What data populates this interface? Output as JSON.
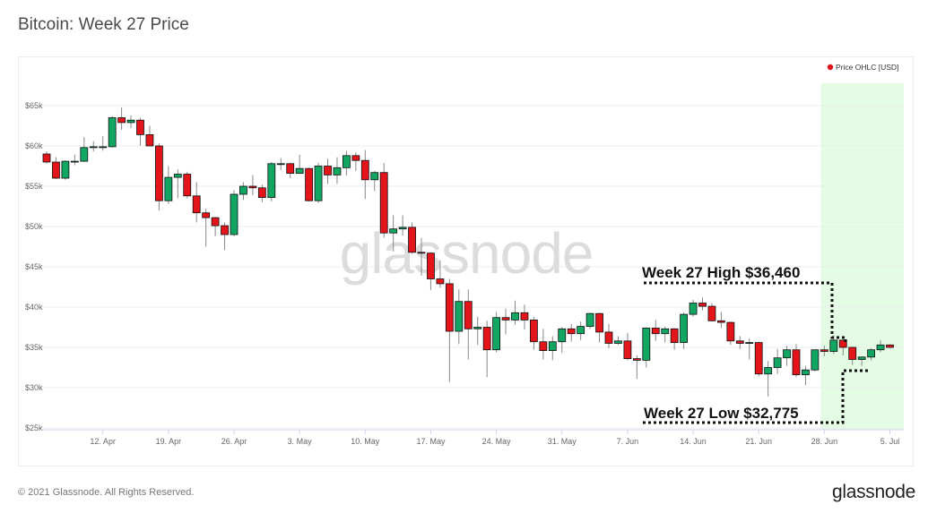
{
  "title": "Bitcoin: Week 27 Price",
  "footer": "© 2021 Glassnode. All Rights Reserved.",
  "logo": "glassnode",
  "watermark": "glassnode",
  "colors": {
    "up": "#12a663",
    "down": "#e3151b",
    "highlight": "#e4fbe4",
    "legend_dot": "#e3151b"
  },
  "chart_data": {
    "type": "candlestick",
    "legend": {
      "label": "Price OHLC [USD]",
      "placement": "top-right"
    },
    "ylim": [
      25000,
      67000
    ],
    "yticks": [
      25000,
      30000,
      35000,
      40000,
      45000,
      50000,
      55000,
      60000,
      65000
    ],
    "ytick_labels": [
      "$25k",
      "$30k",
      "$35k",
      "$40k",
      "$45k",
      "$50k",
      "$55k",
      "$60k",
      "$65k"
    ],
    "xtick_labels": [
      {
        "date": "2021-04-12",
        "label": "12. Apr"
      },
      {
        "date": "2021-04-19",
        "label": "19. Apr"
      },
      {
        "date": "2021-04-26",
        "label": "26. Apr"
      },
      {
        "date": "2021-05-03",
        "label": "3. May"
      },
      {
        "date": "2021-05-10",
        "label": "10. May"
      },
      {
        "date": "2021-05-17",
        "label": "17. May"
      },
      {
        "date": "2021-05-24",
        "label": "24. May"
      },
      {
        "date": "2021-05-31",
        "label": "31. May"
      },
      {
        "date": "2021-06-07",
        "label": "7. Jun"
      },
      {
        "date": "2021-06-14",
        "label": "14. Jun"
      },
      {
        "date": "2021-06-21",
        "label": "21. Jun"
      },
      {
        "date": "2021-06-28",
        "label": "28. Jun"
      },
      {
        "date": "2021-07-05",
        "label": "5. Jul"
      }
    ],
    "start_date": "2021-04-06",
    "ohlc": [
      [
        59000,
        59300,
        57800,
        58000
      ],
      [
        58000,
        58600,
        55900,
        56000
      ],
      [
        56000,
        58200,
        55800,
        58100
      ],
      [
        58100,
        58900,
        57600,
        58100
      ],
      [
        58100,
        61100,
        58000,
        59800
      ],
      [
        59800,
        60600,
        59300,
        59900
      ],
      [
        59900,
        61200,
        59400,
        59900
      ],
      [
        59900,
        63700,
        59800,
        63500
      ],
      [
        63500,
        64800,
        62000,
        62900
      ],
      [
        62900,
        63800,
        62200,
        63200
      ],
      [
        63200,
        63500,
        60000,
        61400
      ],
      [
        61400,
        62500,
        60000,
        60000
      ],
      [
        60000,
        60300,
        52000,
        53200
      ],
      [
        53200,
        57500,
        52800,
        56100
      ],
      [
        56100,
        57100,
        53500,
        56500
      ],
      [
        56500,
        56800,
        53500,
        53800
      ],
      [
        53800,
        55500,
        50500,
        51700
      ],
      [
        51700,
        52200,
        47500,
        51100
      ],
      [
        51100,
        51200,
        48800,
        50100
      ],
      [
        50100,
        50500,
        47100,
        49000
      ],
      [
        49000,
        54500,
        48800,
        54000
      ],
      [
        54000,
        55500,
        53300,
        55000
      ],
      [
        55000,
        56400,
        53900,
        54800
      ],
      [
        54800,
        55200,
        53000,
        53600
      ],
      [
        53600,
        58000,
        53100,
        57800
      ],
      [
        57800,
        58500,
        57000,
        57800
      ],
      [
        57800,
        57900,
        56000,
        56600
      ],
      [
        56600,
        58900,
        56500,
        57200
      ],
      [
        57200,
        57300,
        53100,
        53200
      ],
      [
        53200,
        57900,
        52900,
        57500
      ],
      [
        57500,
        58400,
        55300,
        56400
      ],
      [
        56400,
        58600,
        55300,
        57300
      ],
      [
        57300,
        59400,
        56300,
        58800
      ],
      [
        58800,
        59200,
        56900,
        58200
      ],
      [
        58200,
        59500,
        53400,
        55800
      ],
      [
        55800,
        56900,
        54400,
        56700
      ],
      [
        56700,
        57900,
        48600,
        49200
      ],
      [
        49200,
        51400,
        46900,
        49700
      ],
      [
        49700,
        51400,
        48900,
        49900
      ],
      [
        49900,
        50500,
        46600,
        46800
      ],
      [
        46800,
        48600,
        43900,
        46700
      ],
      [
        46700,
        46800,
        42100,
        43500
      ],
      [
        43500,
        45800,
        42400,
        42900
      ],
      [
        42900,
        43500,
        30700,
        37000
      ],
      [
        37000,
        42200,
        35400,
        40700
      ],
      [
        40700,
        42200,
        33500,
        37300
      ],
      [
        37300,
        38800,
        35300,
        37500
      ],
      [
        37500,
        38300,
        31300,
        34700
      ],
      [
        34700,
        39400,
        34400,
        38700
      ],
      [
        38700,
        39800,
        36600,
        38400
      ],
      [
        38400,
        40800,
        37800,
        39300
      ],
      [
        39300,
        40300,
        37200,
        38400
      ],
      [
        38400,
        38800,
        34700,
        35700
      ],
      [
        35700,
        37300,
        33500,
        34600
      ],
      [
        34600,
        36400,
        33400,
        35700
      ],
      [
        35700,
        37500,
        34300,
        37300
      ],
      [
        37300,
        37900,
        35700,
        36700
      ],
      [
        36700,
        38200,
        35900,
        37600
      ],
      [
        37600,
        39300,
        37300,
        39200
      ],
      [
        39200,
        39300,
        35600,
        36900
      ],
      [
        36900,
        37900,
        34900,
        35500
      ],
      [
        35500,
        36400,
        35300,
        35800
      ],
      [
        35800,
        36800,
        33400,
        33600
      ],
      [
        33600,
        34000,
        31100,
        33400
      ],
      [
        33400,
        37500,
        32500,
        37400
      ],
      [
        37400,
        38400,
        35800,
        36700
      ],
      [
        36700,
        37600,
        35600,
        37300
      ],
      [
        37300,
        37400,
        34700,
        35600
      ],
      [
        35600,
        39300,
        34800,
        39100
      ],
      [
        39100,
        40900,
        38800,
        40500
      ],
      [
        40500,
        41200,
        39600,
        40100
      ],
      [
        40100,
        40500,
        38200,
        38300
      ],
      [
        38300,
        39400,
        37400,
        38100
      ],
      [
        38100,
        38200,
        35300,
        35800
      ],
      [
        35800,
        36400,
        34800,
        35500
      ],
      [
        35500,
        36100,
        33500,
        35600
      ],
      [
        35600,
        35700,
        31400,
        31700
      ],
      [
        31700,
        33300,
        28900,
        32500
      ],
      [
        32500,
        34800,
        31700,
        33700
      ],
      [
        33700,
        35200,
        32700,
        34700
      ],
      [
        34700,
        35400,
        31300,
        31600
      ],
      [
        31600,
        32700,
        30300,
        32200
      ],
      [
        32200,
        34700,
        32000,
        34700
      ],
      [
        34700,
        35200,
        33900,
        34500
      ],
      [
        34500,
        36500,
        34200,
        35900
      ],
      [
        35900,
        36000,
        34000,
        35000
      ],
      [
        35000,
        35000,
        32800,
        33500
      ],
      [
        33500,
        33900,
        32700,
        33800
      ],
      [
        33800,
        34900,
        33400,
        34700
      ],
      [
        34700,
        35900,
        34400,
        35300
      ],
      [
        35300,
        35400,
        34900,
        35000
      ]
    ],
    "annotations": [
      {
        "text": "Week 27 High $36,460",
        "value": 36460
      },
      {
        "text": "Week 27 Low $32,775",
        "value": 32775
      }
    ],
    "highlight": {
      "from": "2021-06-28",
      "to": "2021-07-06",
      "label": "Week 27"
    }
  }
}
